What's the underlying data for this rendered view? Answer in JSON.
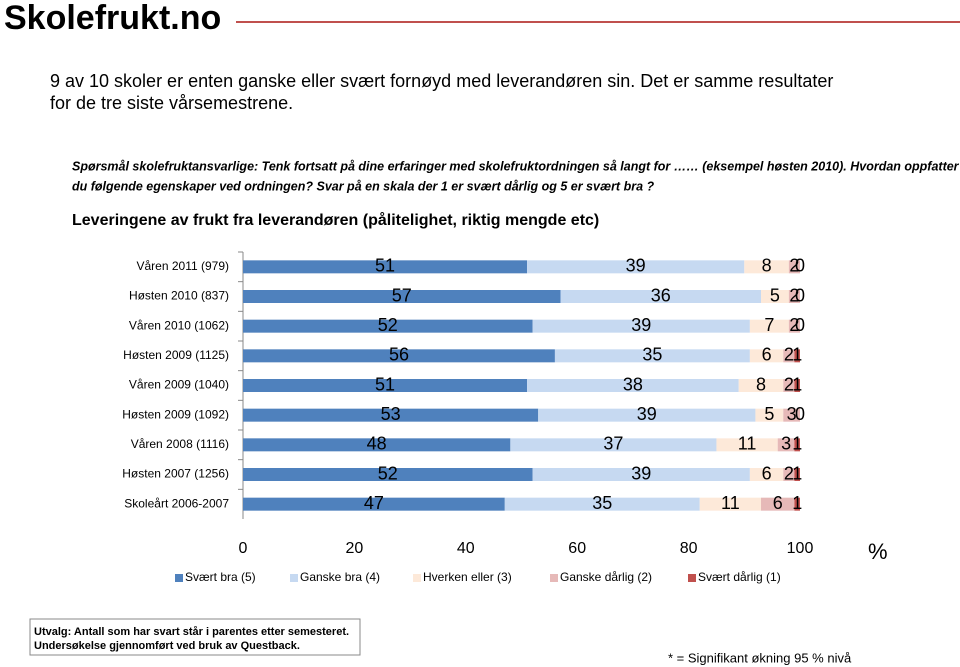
{
  "logo": "Skolefrukt.no",
  "intro": [
    "9 av 10 skoler er enten ganske eller svært fornøyd med leverandøren sin. Det er samme resultater",
    "for de tre siste vårsemestrene."
  ],
  "question": [
    "Spørsmål skolefruktansvarlige: Tenk fortsatt på dine erfaringer med skolefruktordningen så langt for …… (eksempel høsten 2010). Hvordan oppfatter",
    "du følgende egenskaper ved ordningen? Svar på en skala der 1 er svært dårlig og 5 er svært bra ?"
  ],
  "footer": [
    "Utvalg: Antall som har svart står i parentes etter semesteret.",
    "Undersøkelse gjennomført ved bruk av Questback."
  ],
  "note": "* = Signifikant økning 95 % nivå",
  "chart_data": {
    "type": "stacked-bar-horizontal",
    "title": "Leveringene av frukt fra leverandøren (pålitelighet, riktig mengde etc)",
    "xlabel": "%",
    "categories": [
      "Våren 2011 (979)",
      "Høsten 2010 (837)",
      "Våren 2010 (1062)",
      "Høsten 2009 (1125)",
      "Våren 2009 (1040)",
      "Høsten 2009 (1092)",
      "Våren 2008 (1116)",
      "Høsten 2007 (1256)",
      "Skoleårt 2006-2007"
    ],
    "series": [
      {
        "name": "Svært bra (5)",
        "color": "#4f81bd",
        "values": [
          51,
          57,
          52,
          56,
          51,
          53,
          48,
          52,
          47
        ]
      },
      {
        "name": "Ganske bra (4)",
        "color": "#c6d9f1",
        "values": [
          39,
          36,
          39,
          35,
          38,
          39,
          37,
          39,
          35
        ]
      },
      {
        "name": "Hverken eller (3)",
        "color": "#fde9d9",
        "values": [
          8,
          5,
          7,
          6,
          8,
          5,
          11,
          6,
          11
        ]
      },
      {
        "name": "Ganske dårlig (2)",
        "color": "#e6b9b8",
        "values": [
          2,
          2,
          2,
          2,
          2,
          3,
          3,
          2,
          6
        ]
      },
      {
        "name": "Svært dårlig (1)",
        "color": "#c0504d",
        "values": [
          0,
          0,
          0,
          1,
          1,
          0,
          1,
          1,
          1
        ]
      }
    ],
    "xlim": [
      0,
      100
    ],
    "xticks": [
      0,
      20,
      40,
      60,
      80,
      100
    ],
    "legend": "bottom"
  }
}
